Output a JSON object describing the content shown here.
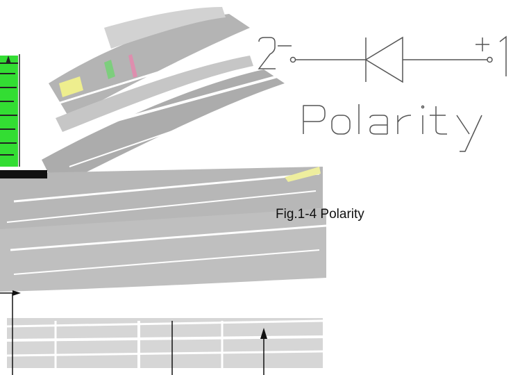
{
  "diagram": {
    "terminal_left": "2",
    "terminal_left_sign": "−",
    "terminal_right": "1",
    "terminal_right_sign": "+",
    "polarity_word": "Polarity",
    "caption": "Fig.1-4 Polarity"
  },
  "colors": {
    "ink": "#555555",
    "artifact_gray": "#aaaaaa",
    "artifact_green": "#33dd33",
    "artifact_yellow": "#eeee88",
    "background": "#ffffff"
  }
}
